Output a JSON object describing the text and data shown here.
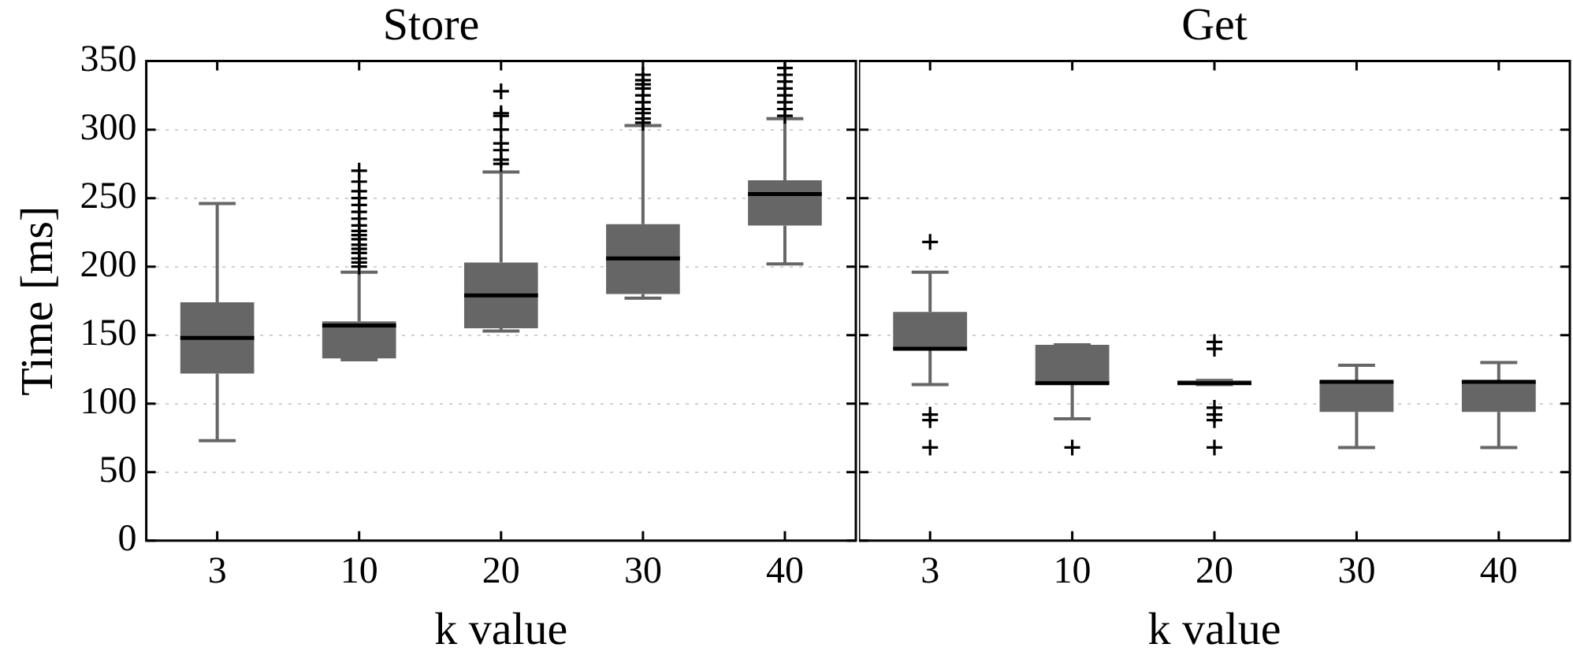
{
  "chart_data": [
    {
      "type": "box",
      "title": "Store",
      "xlabel": "k value",
      "ylabel": "Time [ms]",
      "categories": [
        "3",
        "10",
        "20",
        "30",
        "40"
      ],
      "ylim": [
        0,
        350
      ],
      "yticks": [
        0,
        50,
        100,
        150,
        200,
        250,
        300,
        350
      ],
      "grid": "y",
      "marker": "cross",
      "color": "#666666",
      "boxes": [
        {
          "low": 73,
          "q1": 122,
          "median": 148,
          "q3": 174,
          "high": 246
        },
        {
          "low": 132,
          "q1": 133,
          "median": 157,
          "q3": 160,
          "high": 196,
          "outliers": [
            200,
            203,
            206,
            210,
            213,
            216,
            220,
            223,
            226,
            230,
            235,
            240,
            245,
            250,
            255,
            262,
            270
          ]
        },
        {
          "low": 153,
          "q1": 155,
          "median": 179,
          "q3": 203,
          "high": 269,
          "outliers": [
            275,
            278,
            285,
            290,
            300,
            310,
            312,
            328
          ]
        },
        {
          "low": 177,
          "q1": 180,
          "median": 206,
          "q3": 231,
          "high": 303,
          "outliers": [
            305,
            308,
            312,
            315,
            320,
            325,
            330,
            333,
            336,
            340
          ]
        },
        {
          "low": 202,
          "q1": 230,
          "median": 253,
          "q3": 263,
          "high": 308,
          "outliers": [
            310,
            315,
            320,
            325,
            330,
            335,
            340,
            345
          ]
        }
      ]
    },
    {
      "type": "box",
      "title": "Get",
      "xlabel": "k value",
      "categories": [
        "3",
        "10",
        "20",
        "30",
        "40"
      ],
      "ylim": [
        0,
        350
      ],
      "yticks": [
        0,
        50,
        100,
        150,
        200,
        250,
        300,
        350
      ],
      "tick_labels": "x",
      "grid": "y",
      "marker": "cross",
      "color": "#666666",
      "boxes": [
        {
          "low": 114,
          "q1": 140,
          "median": 140,
          "q3": 167,
          "high": 196,
          "outliers": [
            218,
            92,
            88,
            68
          ]
        },
        {
          "low": 89,
          "q1": 115,
          "median": 115,
          "q3": 143,
          "high": 143,
          "outliers": [
            68
          ]
        },
        {
          "low": 114,
          "q1": 114,
          "median": 115,
          "q3": 117,
          "high": 117,
          "outliers": [
            145,
            140,
            97,
            92,
            88,
            68
          ]
        },
        {
          "low": 68,
          "q1": 94,
          "median": 116,
          "q3": 116,
          "high": 128
        },
        {
          "low": 68,
          "q1": 94,
          "median": 116,
          "q3": 116,
          "high": 130
        }
      ]
    }
  ]
}
